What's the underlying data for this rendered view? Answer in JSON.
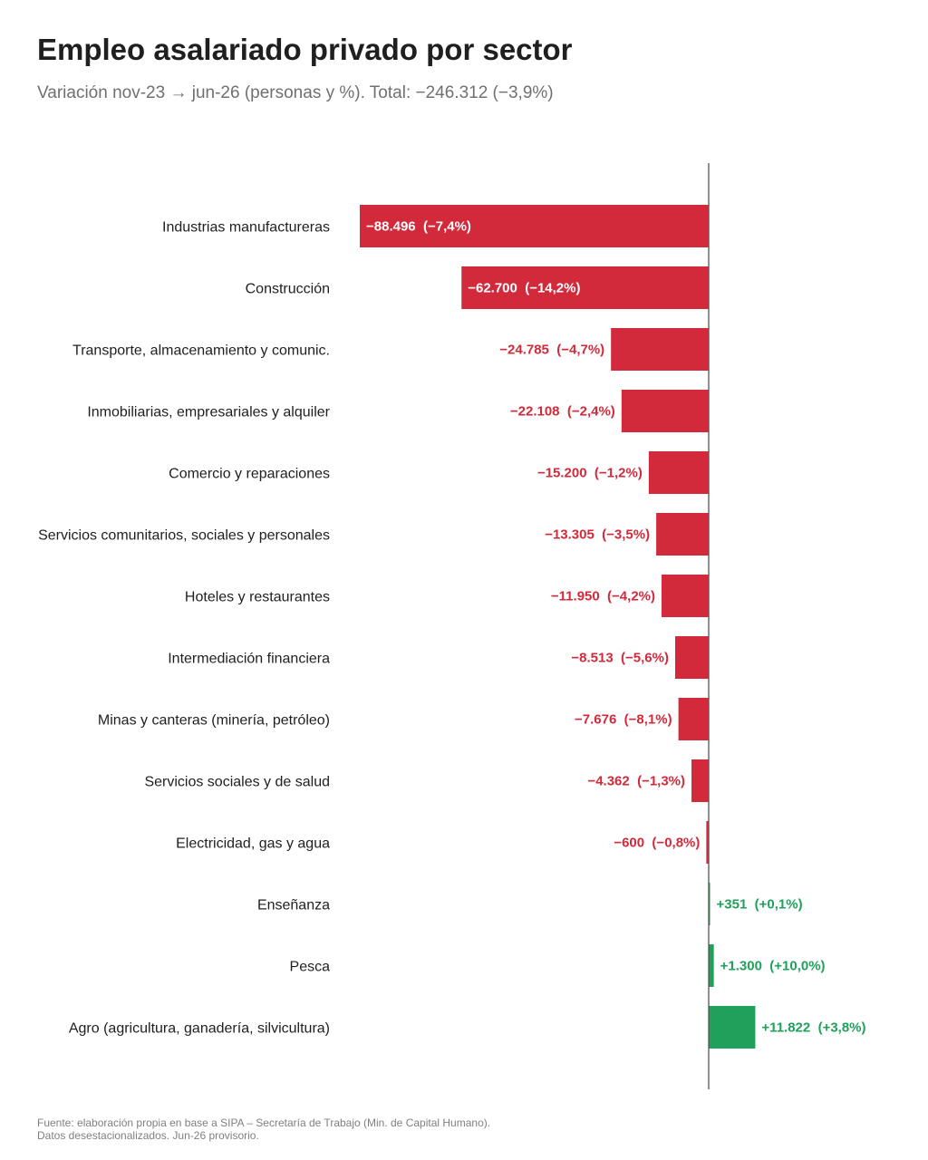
{
  "chart_data": {
    "type": "bar",
    "orientation": "horizontal",
    "title": "Empleo asalariado privado por sector",
    "subtitle": "Variación nov-23 → jun-26 (personas y %). Total: −246.312 (−3,9%)",
    "categories": [
      "Industrias manufactureras",
      "Construcción",
      "Transporte, almacenamiento y comunic.",
      "Inmobiliarias, empresariales y alquiler",
      "Comercio y reparaciones",
      "Servicios comunitarios, sociales y personales",
      "Hoteles y restaurantes",
      "Intermediación financiera",
      "Minas y canteras (minería, petróleo)",
      "Servicios sociales y de salud",
      "Electricidad, gas y agua",
      "Enseñanza",
      "Pesca",
      "Agro (agricultura, ganadería, silvicultura)"
    ],
    "values": [
      -88496,
      -62700,
      -24785,
      -22108,
      -15200,
      -13305,
      -11950,
      -8513,
      -7676,
      -4362,
      -600,
      351,
      1300,
      11822
    ],
    "data_labels": [
      "−88.496  (−7,4%)",
      "−62.700  (−14,2%)",
      "−24.785  (−4,7%)",
      "−22.108  (−2,4%)",
      "−15.200  (−1,2%)",
      "−13.305  (−3,5%)",
      "−11.950  (−4,2%)",
      "−8.513  (−5,6%)",
      "−7.676  (−8,1%)",
      "−4.362  (−1,3%)",
      "−600  (−0,8%)",
      "+351  (+0,1%)",
      "+1.300  (+10,0%)",
      "+11.822  (+3,8%)"
    ],
    "negative_color": "#d32a3b",
    "positive_color": "#1fa05b",
    "axis_color": "#555555",
    "grid": false
  },
  "footer": {
    "line1": "Fuente: elaboración propia en base a SIPA – Secretaría de Trabajo (Min. de Capital Humano).",
    "line2": "Datos desestacionalizados. Jun-26 provisorio."
  }
}
